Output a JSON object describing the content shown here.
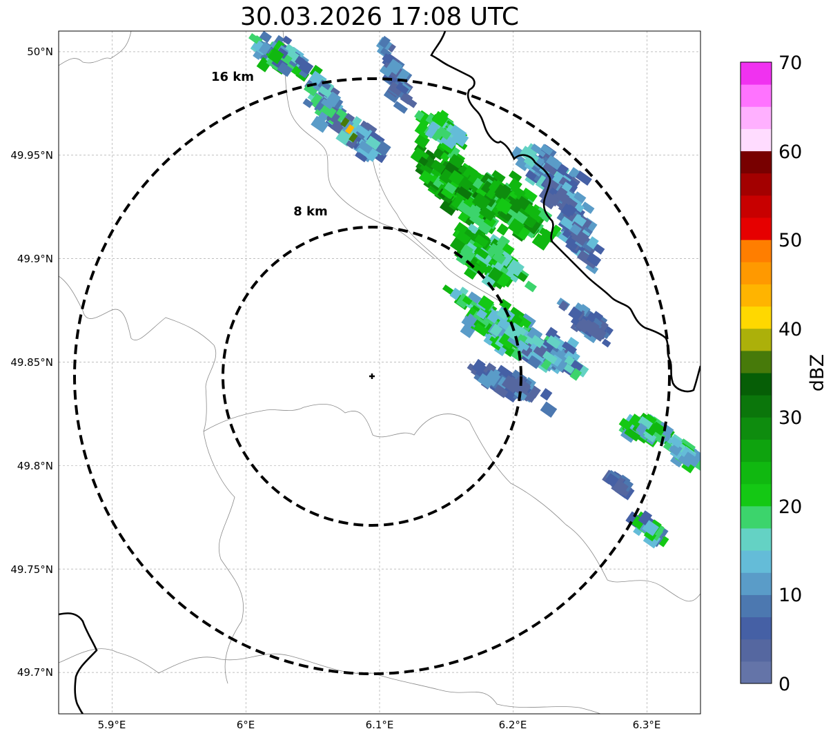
{
  "title": "30.03.2026 17:08 UTC",
  "map": {
    "lat_labels": [
      "50°N",
      "49.95°N",
      "49.9°N",
      "49.85°N",
      "49.8°N",
      "49.75°N",
      "49.7°N"
    ],
    "lon_labels": [
      "5.9°E",
      "6°E",
      "6.1°E",
      "6.2°E",
      "6.3°E"
    ],
    "lat_values": [
      50.0,
      49.95,
      49.9,
      49.85,
      49.8,
      49.75,
      49.7
    ],
    "lon_values": [
      5.9,
      6.0,
      6.1,
      6.2,
      6.3
    ],
    "extent": {
      "lon_min": 5.86,
      "lon_max": 6.34,
      "lat_min": 49.68,
      "lat_max": 50.01
    },
    "radar_site": {
      "lon": 6.1,
      "lat": 49.843
    },
    "rings": [
      {
        "label": "8 km",
        "radius_km": 8
      },
      {
        "label": "16 km",
        "radius_km": 16
      }
    ]
  },
  "colorbar": {
    "label": "dBZ",
    "min": 0,
    "max": 70,
    "step": 2.5,
    "tick_labels": [
      "0",
      "10",
      "20",
      "30",
      "40",
      "50",
      "60",
      "70"
    ],
    "colors": [
      "#6474a8",
      "#5567a0",
      "#4560a5",
      "#4c78b0",
      "#5a9cc8",
      "#64bcd8",
      "#64d2c4",
      "#3cd46c",
      "#14c814",
      "#10b810",
      "#0ea30e",
      "#0e8c0e",
      "#0b760b",
      "#065e06",
      "#477a0a",
      "#acb00a",
      "#ffd800",
      "#ffb400",
      "#ff9900",
      "#ff7e00",
      "#e60000",
      "#c80000",
      "#a30000",
      "#780000",
      "#ffdcff",
      "#ffb0ff",
      "#ff73ff",
      "#f032f0"
    ]
  }
}
